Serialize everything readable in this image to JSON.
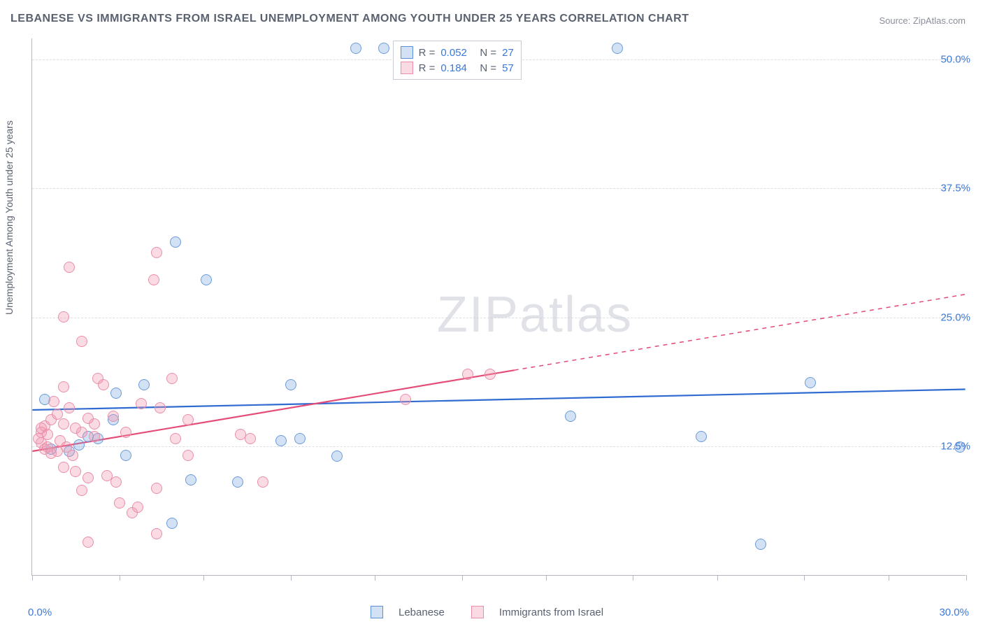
{
  "title": "LEBANESE VS IMMIGRANTS FROM ISRAEL UNEMPLOYMENT AMONG YOUTH UNDER 25 YEARS CORRELATION CHART",
  "source": "Source: ZipAtlas.com",
  "ylabel": "Unemployment Among Youth under 25 years",
  "watermark_a": "ZIP",
  "watermark_b": "atlas",
  "chart": {
    "type": "scatter",
    "xlim": [
      0,
      30
    ],
    "ylim": [
      0,
      52
    ],
    "xtick_positions": [
      0,
      2.8,
      5.5,
      8.3,
      11.0,
      13.8,
      16.5,
      19.3,
      22.0,
      24.8,
      27.5,
      30.0
    ],
    "xlabels": {
      "0": "0.0%",
      "30": "30.0%"
    },
    "yticks": [
      12.5,
      25.0,
      37.5,
      50.0
    ],
    "ylabels": [
      "12.5%",
      "25.0%",
      "37.5%",
      "50.0%"
    ],
    "grid_color": "#dcdfe5",
    "axis_color": "#b5b9c2",
    "background_color": "#ffffff",
    "marker_radius": 8,
    "marker_stroke": 1.5,
    "series": [
      {
        "name": "Lebanese",
        "color_fill": "rgba(130,170,225,0.35)",
        "color_stroke": "#6b9bd8",
        "legend_stroke": "#5b8fd6",
        "R": "0.052",
        "N": "27",
        "trend": {
          "x1": 0,
          "y1": 16.0,
          "x2": 30,
          "y2": 18.0,
          "solid_until": 30,
          "color": "#2f6bd0",
          "width": 2.2
        },
        "points": [
          [
            10.4,
            51.0
          ],
          [
            11.3,
            51.0
          ],
          [
            4.6,
            32.2
          ],
          [
            5.6,
            28.6
          ],
          [
            2.7,
            17.6
          ],
          [
            3.6,
            18.4
          ],
          [
            8.3,
            18.4
          ],
          [
            25.0,
            18.6
          ],
          [
            17.3,
            15.4
          ],
          [
            21.5,
            13.4
          ],
          [
            29.8,
            12.4
          ],
          [
            9.8,
            11.5
          ],
          [
            8.0,
            13.0
          ],
          [
            8.6,
            13.2
          ],
          [
            5.1,
            9.2
          ],
          [
            4.5,
            5.0
          ],
          [
            23.4,
            3.0
          ],
          [
            2.6,
            15.0
          ],
          [
            1.2,
            12.0
          ],
          [
            0.6,
            12.2
          ],
          [
            1.8,
            13.4
          ],
          [
            1.5,
            12.6
          ],
          [
            2.1,
            13.2
          ],
          [
            3.0,
            11.6
          ],
          [
            6.6,
            9.0
          ],
          [
            0.4,
            17.0
          ],
          [
            18.8,
            51.0
          ]
        ]
      },
      {
        "name": "Immigrants from Israel",
        "color_fill": "rgba(240,150,175,0.35)",
        "color_stroke": "#e98fa9",
        "legend_stroke": "#e98fa9",
        "R": "0.184",
        "N": "57",
        "trend": {
          "x1": 0,
          "y1": 12.0,
          "x2": 30,
          "y2": 27.2,
          "solid_until": 15.5,
          "color": "#e44d77",
          "width": 2.2
        },
        "points": [
          [
            1.2,
            29.8
          ],
          [
            3.9,
            28.6
          ],
          [
            4.0,
            31.2
          ],
          [
            1.0,
            25.0
          ],
          [
            1.6,
            22.6
          ],
          [
            2.1,
            19.0
          ],
          [
            2.3,
            18.4
          ],
          [
            4.5,
            19.0
          ],
          [
            14.0,
            19.4
          ],
          [
            14.7,
            19.4
          ],
          [
            12.0,
            17.0
          ],
          [
            3.5,
            16.6
          ],
          [
            4.1,
            16.2
          ],
          [
            2.6,
            15.4
          ],
          [
            5.0,
            15.0
          ],
          [
            1.0,
            18.2
          ],
          [
            0.4,
            14.4
          ],
          [
            0.6,
            15.0
          ],
          [
            0.8,
            15.6
          ],
          [
            0.3,
            13.8
          ],
          [
            0.3,
            12.8
          ],
          [
            0.4,
            12.2
          ],
          [
            0.5,
            12.4
          ],
          [
            0.6,
            11.8
          ],
          [
            0.8,
            12.0
          ],
          [
            0.9,
            13.0
          ],
          [
            1.1,
            12.4
          ],
          [
            1.3,
            11.6
          ],
          [
            1.0,
            14.6
          ],
          [
            1.4,
            14.2
          ],
          [
            1.6,
            13.8
          ],
          [
            1.2,
            16.2
          ],
          [
            0.7,
            16.8
          ],
          [
            1.8,
            15.2
          ],
          [
            2.0,
            14.6
          ],
          [
            2.0,
            13.4
          ],
          [
            1.0,
            10.4
          ],
          [
            1.4,
            10.0
          ],
          [
            1.8,
            9.4
          ],
          [
            2.4,
            9.6
          ],
          [
            2.7,
            9.0
          ],
          [
            1.6,
            8.2
          ],
          [
            4.0,
            8.4
          ],
          [
            4.6,
            13.2
          ],
          [
            5.0,
            11.6
          ],
          [
            7.0,
            13.2
          ],
          [
            7.4,
            9.0
          ],
          [
            3.0,
            13.8
          ],
          [
            3.2,
            6.0
          ],
          [
            3.4,
            6.6
          ],
          [
            1.8,
            3.2
          ],
          [
            4.0,
            4.0
          ],
          [
            2.8,
            7.0
          ],
          [
            6.7,
            13.6
          ],
          [
            0.2,
            13.2
          ],
          [
            0.3,
            14.2
          ],
          [
            0.5,
            13.6
          ]
        ]
      }
    ]
  },
  "bottom_legend": [
    {
      "label": "Lebanese"
    },
    {
      "label": "Immigrants from Israel"
    }
  ]
}
